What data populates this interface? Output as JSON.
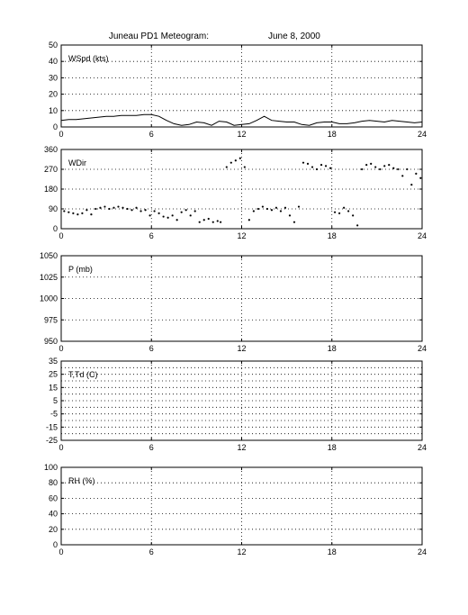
{
  "figure": {
    "title_left": "Juneau PD1 Meteogram:",
    "title_right": "June  8, 2000"
  },
  "chart_data": [
    {
      "type": "line",
      "label": "WSpd (kts)",
      "xlim": [
        0,
        24
      ],
      "ylim": [
        0,
        50
      ],
      "xticks": [
        0,
        6,
        12,
        18,
        24
      ],
      "yticks": [
        0,
        10,
        20,
        30,
        40,
        50
      ],
      "grid": true,
      "series": [
        {
          "x": [
            0,
            0.5,
            1,
            1.5,
            2,
            2.5,
            3,
            3.5,
            4,
            4.5,
            5,
            5.5,
            6,
            6.5,
            7,
            7.5,
            8,
            8.5,
            9,
            9.5,
            10,
            10.5,
            11,
            11.5,
            12,
            12.5,
            13,
            13.5,
            14,
            14.5,
            15,
            15.5,
            16,
            16.5,
            17,
            17.5,
            18,
            18.5,
            19,
            19.5,
            20,
            20.5,
            21,
            21.5,
            22,
            22.5,
            23,
            23.5,
            24
          ],
          "y": [
            4,
            4.5,
            4.5,
            5,
            5.5,
            6,
            6.5,
            6.5,
            7,
            7,
            7,
            7.5,
            7.5,
            6.5,
            4,
            2,
            1,
            1.5,
            3,
            2.5,
            1,
            3.5,
            3,
            1,
            1.5,
            2,
            4,
            6.5,
            4,
            3.5,
            3,
            3,
            1.5,
            1,
            2.5,
            3,
            3,
            2,
            2,
            2.5,
            3.5,
            4,
            3.5,
            3,
            4,
            3.5,
            3,
            2.5,
            3
          ]
        }
      ]
    },
    {
      "type": "scatter",
      "label": "WDir",
      "xlim": [
        0,
        24
      ],
      "ylim": [
        0,
        360
      ],
      "xticks": [
        0,
        6,
        12,
        18,
        24
      ],
      "yticks": [
        0,
        90,
        180,
        270,
        360
      ],
      "grid": true,
      "series": [
        {
          "x": [
            0.2,
            0.5,
            0.8,
            1.1,
            1.4,
            1.7,
            2.0,
            2.3,
            2.6,
            2.9,
            3.2,
            3.5,
            3.8,
            4.1,
            4.4,
            4.7,
            5.0,
            5.3,
            5.6,
            5.9,
            6.2,
            6.5,
            6.8,
            7.1,
            7.4,
            7.7,
            8.0,
            8.3,
            8.6,
            8.9,
            9.2,
            9.5,
            9.8,
            10.1,
            10.4,
            10.6,
            11.0,
            11.3,
            11.6,
            11.9,
            12.2,
            12.5,
            12.8,
            13.1,
            13.4,
            13.7,
            14.0,
            14.3,
            14.6,
            14.9,
            15.2,
            15.5,
            15.8,
            16.1,
            16.4,
            16.7,
            17.0,
            17.3,
            17.6,
            17.9,
            18.2,
            18.5,
            18.8,
            19.1,
            19.4,
            19.7,
            20.0,
            20.3,
            20.6,
            20.9,
            21.2,
            21.5,
            21.8,
            22.1,
            22.4,
            22.7,
            23.0,
            23.3,
            23.6,
            23.9
          ],
          "y": [
            80,
            75,
            70,
            65,
            70,
            85,
            65,
            90,
            95,
            100,
            90,
            95,
            100,
            95,
            90,
            85,
            95,
            80,
            85,
            60,
            80,
            70,
            55,
            50,
            60,
            40,
            75,
            85,
            60,
            80,
            30,
            40,
            45,
            30,
            35,
            30,
            280,
            300,
            310,
            320,
            280,
            40,
            80,
            90,
            100,
            90,
            85,
            95,
            80,
            95,
            60,
            30,
            100,
            300,
            295,
            280,
            270,
            290,
            285,
            275,
            75,
            70,
            95,
            80,
            60,
            15,
            270,
            290,
            295,
            280,
            270,
            285,
            290,
            275,
            270,
            240,
            270,
            200,
            250,
            230
          ]
        }
      ]
    },
    {
      "type": "line",
      "label": "P (mb)",
      "xlim": [
        0,
        24
      ],
      "ylim": [
        950,
        1050
      ],
      "xticks": [
        0,
        6,
        12,
        18,
        24
      ],
      "yticks": [
        950,
        975,
        1000,
        1025,
        1050
      ],
      "grid": true,
      "series": []
    },
    {
      "type": "line",
      "label": "T,Td (C)",
      "xlim": [
        0,
        24
      ],
      "ylim": [
        -25,
        35
      ],
      "xticks": [
        0,
        6,
        12,
        18,
        24
      ],
      "yticks": [
        -25,
        -15,
        -5,
        5,
        15,
        25,
        35
      ],
      "ytick_labels": [
        "-25",
        "-15",
        "-5",
        "5",
        "15",
        "25",
        "35"
      ],
      "yticks_minor": [
        -20,
        -10,
        0,
        10,
        20,
        30
      ],
      "grid": true,
      "series": []
    },
    {
      "type": "line",
      "label": "RH (%)",
      "xlim": [
        0,
        24
      ],
      "ylim": [
        0,
        100
      ],
      "xticks": [
        0,
        6,
        12,
        18,
        24
      ],
      "yticks": [
        0,
        20,
        40,
        60,
        80,
        100
      ],
      "grid": true,
      "series": []
    }
  ]
}
